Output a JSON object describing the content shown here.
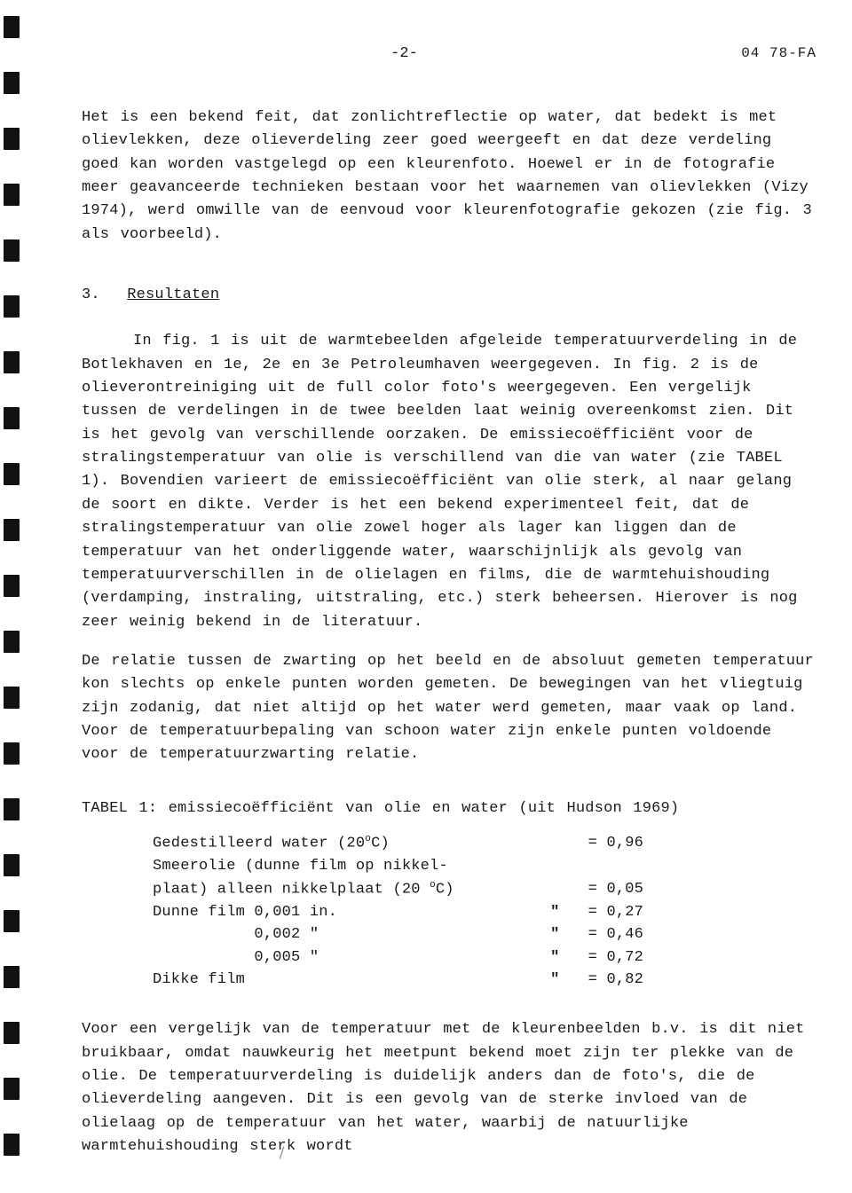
{
  "header": {
    "page_number": "-2-",
    "doc_ref": "04 78-FA"
  },
  "paragraphs": {
    "p1": "Het is een bekend feit, dat zonlichtreflectie op water, dat bedekt is met olievlekken, deze olieverdeling zeer goed weergeeft en dat deze verdeling goed kan worden vastgelegd op een kleurenfoto. Hoewel er in de fotografie meer geavanceerde technieken bestaan voor het waarnemen van olievlekken (Vizy 1974), werd omwille van de eenvoud voor kleurenfotografie gekozen (zie fig. 3 als voorbeeld).",
    "sec3_num": "3.",
    "sec3_title": "Resultaten",
    "p2": "In fig. 1 is uit de warmtebeelden afgeleide temperatuurverdeling in de Botlekhaven en 1e, 2e en 3e Petroleumhaven weergegeven. In fig. 2 is de olieverontreiniging uit de full color foto's weergegeven. Een vergelijk tussen de verdelingen in de twee beelden laat weinig overeenkomst zien. Dit is het gevolg van verschillende oorzaken. De emissiecoëfficiënt voor de stralingstemperatuur van olie is verschillend van die van water (zie TABEL 1). Bovendien varieert de emissiecoëfficiënt van olie sterk, al naar gelang de soort en dikte. Verder is het een bekend experimenteel feit, dat de stralingstemperatuur van olie zowel hoger als lager kan liggen dan de temperatuur van het onderliggende water, waarschijnlijk als gevolg van temperatuurverschillen in de olielagen en films, die de warmtehuishouding (verdamping, instraling, uitstraling, etc.) sterk beheersen. Hierover is nog zeer weinig bekend in de literatuur.",
    "p3": "De relatie tussen de zwarting op het beeld en de absoluut gemeten temperatuur kon slechts op enkele punten worden gemeten. De bewegingen van het vliegtuig zijn zodanig, dat niet altijd op het water werd gemeten, maar vaak op land. Voor de temperatuurbepaling van schoon water zijn enkele punten voldoende voor de temperatuurzwarting relatie.",
    "table_title": "TABEL 1: emissiecoëfficiënt van olie en water (uit Hudson 1969)",
    "p4": "Voor een vergelijk van de temperatuur met de kleurenbeelden b.v. is dit niet bruikbaar, omdat nauwkeurig het meetpunt bekend moet zijn ter plekke van de olie. De temperatuurverdeling is duidelijk anders dan de foto's, die de olieverdeling aangeven. Dit is een gevolg van de sterke invloed van de olielaag op de temperatuur van het water, waarbij de natuurlijke warmtehuishouding sterk wordt"
  },
  "table1": {
    "rows": [
      {
        "desc_pre": "Gedestilleerd water (20",
        "desc_post": "C)",
        "ditto": "",
        "value": "= 0,96"
      },
      {
        "desc_pre": "Smeerolie (dunne film op nikkel-",
        "desc_post": "",
        "ditto": "",
        "value": ""
      },
      {
        "desc_pre": "plaat) alleen nikkelplaat (20 ",
        "desc_post": "C)",
        "ditto": "",
        "value": "= 0,05"
      },
      {
        "desc_pre": "Dunne film 0,001 in.",
        "desc_post": "",
        "ditto": "\"",
        "value": "= 0,27"
      },
      {
        "desc_pre": "           0,002 \"",
        "desc_post": "",
        "ditto": "\"",
        "value": "= 0,46"
      },
      {
        "desc_pre": "           0,005 \"",
        "desc_post": "",
        "ditto": "\"",
        "value": "= 0,72"
      },
      {
        "desc_pre": "Dikke film",
        "desc_post": "",
        "ditto": "\"",
        "value": "= 0,82"
      }
    ],
    "sup_rows": [
      0,
      2
    ],
    "superscript": "o"
  }
}
